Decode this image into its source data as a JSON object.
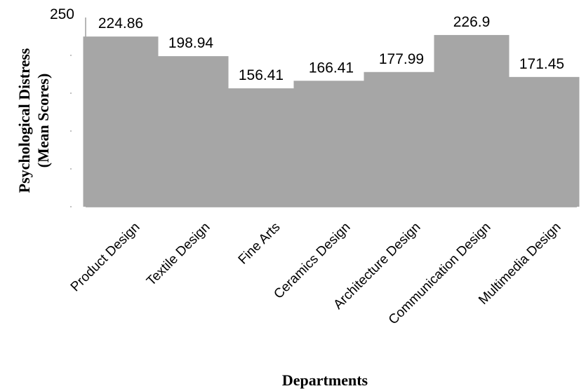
{
  "chart_data": {
    "type": "bar",
    "categories": [
      "Product Design",
      "Textile Design",
      "Fine Arts",
      "Ceramics Design",
      "Architecture Design",
      "Communication Design",
      "Multimedia Design"
    ],
    "values": [
      224.86,
      198.94,
      156.41,
      166.41,
      177.99,
      226.9,
      171.45
    ],
    "value_labels": [
      "224.86",
      "198.94",
      "156.41",
      "166.41",
      "177.99",
      "226.9",
      "171.45"
    ],
    "title": "",
    "xlabel": "Departments",
    "ylabel_line1": "Psychological Distress",
    "ylabel_line2": "(Mean Scores)",
    "ylim": [
      0,
      250
    ],
    "yticks": [
      "250"
    ],
    "grid": false,
    "bar_color": "#a6a6a6"
  }
}
